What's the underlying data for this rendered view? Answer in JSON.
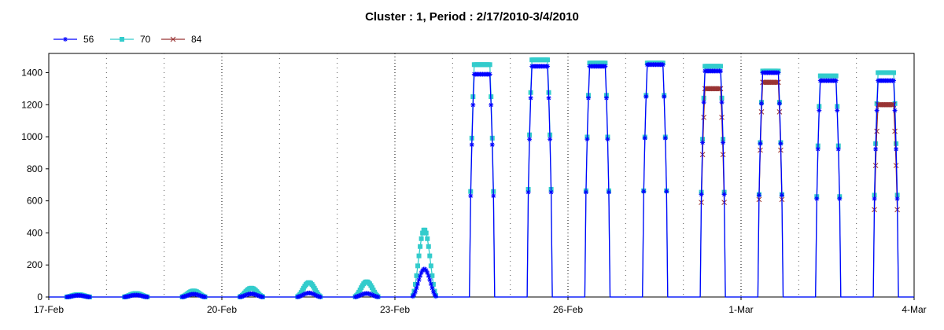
{
  "chart_data": {
    "type": "line",
    "title": "Cluster : 1, Period : 2/17/2010-3/4/2010",
    "xlabel": "",
    "ylabel": "",
    "x_ticks": [
      "17-Feb",
      "20-Feb",
      "23-Feb",
      "26-Feb",
      "1-Mar",
      "4-Mar"
    ],
    "x_range_days": [
      0,
      15
    ],
    "ylim": [
      0,
      1520
    ],
    "y_ticks": [
      0,
      200,
      400,
      600,
      800,
      1000,
      1200,
      1400
    ],
    "grid": {
      "vertical_major": true,
      "vertical_minor_dotted": true,
      "horizontal": false
    },
    "legend_position": "top-left",
    "series": [
      {
        "name": "56",
        "color": "#0000ff",
        "marker": "asterisk",
        "days": [
          {
            "day": 0,
            "peak": 10
          },
          {
            "day": 1,
            "peak": 12
          },
          {
            "day": 2,
            "peak": 18
          },
          {
            "day": 3,
            "peak": 20
          },
          {
            "day": 4,
            "peak": 25
          },
          {
            "day": 5,
            "peak": 22
          },
          {
            "day": 6,
            "peak": 175
          },
          {
            "day": 7,
            "peak": 1390
          },
          {
            "day": 8,
            "peak": 1440
          },
          {
            "day": 9,
            "peak": 1440
          },
          {
            "day": 10,
            "peak": 1450
          },
          {
            "day": 11,
            "peak": 1410
          },
          {
            "day": 12,
            "peak": 1400
          },
          {
            "day": 13,
            "peak": 1350
          },
          {
            "day": 14,
            "peak": 1350
          }
        ]
      },
      {
        "name": "70",
        "color": "#33cccc",
        "marker": "square",
        "days": [
          {
            "day": 0,
            "peak": 15
          },
          {
            "day": 1,
            "peak": 22
          },
          {
            "day": 2,
            "peak": 38
          },
          {
            "day": 3,
            "peak": 55
          },
          {
            "day": 4,
            "peak": 90
          },
          {
            "day": 5,
            "peak": 95
          },
          {
            "day": 6,
            "peak": 420
          },
          {
            "day": 7,
            "peak": 1450
          },
          {
            "day": 8,
            "peak": 1480
          },
          {
            "day": 9,
            "peak": 1460
          },
          {
            "day": 10,
            "peak": 1460
          },
          {
            "day": 11,
            "peak": 1440
          },
          {
            "day": 12,
            "peak": 1410
          },
          {
            "day": 13,
            "peak": 1380
          },
          {
            "day": 14,
            "peak": 1400
          }
        ]
      },
      {
        "name": "84",
        "color": "#993333",
        "marker": "cross",
        "days": [
          {
            "day": 11,
            "peak": 1300
          },
          {
            "day": 12,
            "peak": 1340
          },
          {
            "day": 14,
            "peak": 1200
          }
        ]
      }
    ]
  }
}
